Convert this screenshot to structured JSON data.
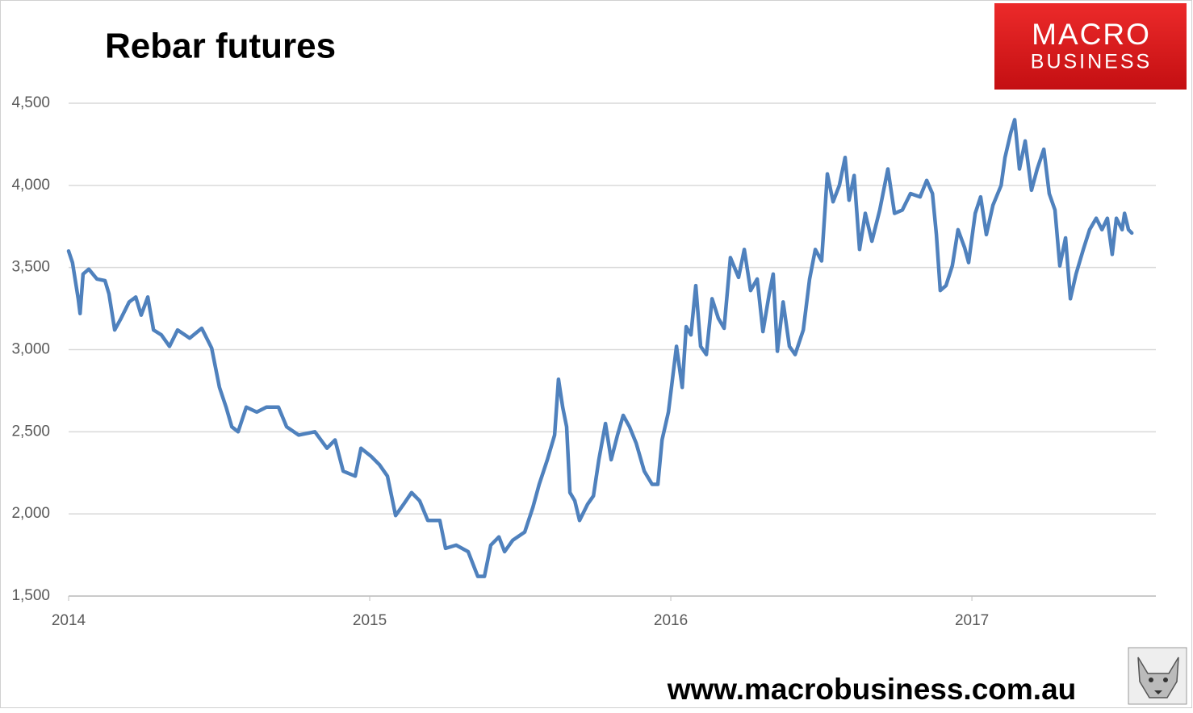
{
  "chart_data": {
    "type": "line",
    "title": "Rebar futures",
    "color": "#4f81bd",
    "grid": true,
    "xlim": [
      2014,
      2017.611
    ],
    "xticks": [
      2014,
      2015,
      2016,
      2017
    ],
    "ylim": [
      1500,
      4500
    ],
    "yticks": [
      {
        "value": 1500,
        "label": "1,500"
      },
      {
        "value": 2000,
        "label": "2,000"
      },
      {
        "value": 2500,
        "label": "2,500"
      },
      {
        "value": 3000,
        "label": "3,000"
      },
      {
        "value": 3500,
        "label": "3,500"
      },
      {
        "value": 4000,
        "label": "4,000"
      },
      {
        "value": 4500,
        "label": "4,500"
      }
    ],
    "x": [
      2014.0,
      2014.013,
      2014.032,
      2014.038,
      2014.048,
      2014.067,
      2014.094,
      2014.121,
      2014.134,
      2014.153,
      2014.174,
      2014.201,
      2014.223,
      2014.241,
      2014.263,
      2014.282,
      2014.308,
      2014.335,
      2014.362,
      2014.402,
      2014.442,
      2014.475,
      2014.501,
      2014.523,
      2014.542,
      2014.563,
      2014.59,
      2014.625,
      2014.657,
      2014.697,
      2014.724,
      2014.764,
      2014.818,
      2014.858,
      2014.885,
      2014.912,
      2014.952,
      2014.971,
      2015.005,
      2015.032,
      2015.059,
      2015.086,
      2015.113,
      2015.139,
      2015.166,
      2015.193,
      2015.233,
      2015.252,
      2015.287,
      2015.327,
      2015.359,
      2015.381,
      2015.402,
      2015.429,
      2015.448,
      2015.475,
      2015.515,
      2015.542,
      2015.563,
      2015.59,
      2015.614,
      2015.627,
      2015.641,
      2015.654,
      2015.665,
      2015.681,
      2015.697,
      2015.724,
      2015.743,
      2015.761,
      2015.783,
      2015.802,
      2015.823,
      2015.842,
      2015.863,
      2015.885,
      2015.912,
      2015.938,
      2015.957,
      2015.971,
      2015.992,
      2016.019,
      2016.038,
      2016.051,
      2016.067,
      2016.083,
      2016.099,
      2016.118,
      2016.137,
      2016.158,
      2016.177,
      2016.198,
      2016.225,
      2016.244,
      2016.265,
      2016.287,
      2016.306,
      2016.327,
      2016.34,
      2016.354,
      2016.373,
      2016.394,
      2016.413,
      2016.44,
      2016.461,
      2016.48,
      2016.501,
      2016.52,
      2016.539,
      2016.56,
      2016.579,
      2016.592,
      2016.609,
      2016.627,
      2016.646,
      2016.668,
      2016.694,
      2016.721,
      2016.743,
      2016.769,
      2016.796,
      2016.828,
      2016.85,
      2016.869,
      2016.882,
      2016.895,
      2016.914,
      2016.935,
      2016.954,
      2016.976,
      2016.989,
      2017.011,
      2017.029,
      2017.048,
      2017.07,
      2017.097,
      2017.11,
      2017.129,
      2017.142,
      2017.158,
      2017.177,
      2017.198,
      2017.217,
      2017.239,
      2017.257,
      2017.276,
      2017.292,
      2017.311,
      2017.327,
      2017.346,
      2017.37,
      2017.391,
      2017.413,
      2017.432,
      2017.45,
      2017.466,
      2017.48,
      2017.499,
      2017.507,
      2017.52,
      2017.531
    ],
    "values": [
      3600,
      3530,
      3310,
      3220,
      3460,
      3490,
      3430,
      3420,
      3340,
      3120,
      3190,
      3290,
      3320,
      3210,
      3320,
      3120,
      3090,
      3020,
      3120,
      3070,
      3130,
      3010,
      2770,
      2650,
      2530,
      2500,
      2650,
      2620,
      2650,
      2650,
      2530,
      2480,
      2500,
      2400,
      2450,
      2260,
      2230,
      2400,
      2350,
      2300,
      2230,
      1990,
      2060,
      2130,
      2080,
      1960,
      1960,
      1790,
      1810,
      1770,
      1620,
      1620,
      1810,
      1860,
      1770,
      1840,
      1890,
      2040,
      2180,
      2330,
      2480,
      2820,
      2650,
      2530,
      2130,
      2080,
      1960,
      2060,
      2110,
      2330,
      2550,
      2330,
      2480,
      2600,
      2530,
      2430,
      2260,
      2180,
      2180,
      2450,
      2620,
      3020,
      2770,
      3140,
      3090,
      3390,
      3020,
      2970,
      3310,
      3190,
      3130,
      3560,
      3440,
      3610,
      3360,
      3430,
      3110,
      3340,
      3460,
      2990,
      3290,
      3020,
      2970,
      3120,
      3430,
      3610,
      3540,
      4070,
      3900,
      4000,
      4170,
      3910,
      4060,
      3610,
      3830,
      3660,
      3850,
      4100,
      3830,
      3850,
      3950,
      3930,
      4030,
      3950,
      3700,
      3360,
      3390,
      3510,
      3730,
      3620,
      3530,
      3830,
      3930,
      3700,
      3880,
      4000,
      4170,
      4320,
      4400,
      4100,
      4270,
      3970,
      4100,
      4220,
      3950,
      3850,
      3510,
      3680,
      3310,
      3460,
      3610,
      3730,
      3800,
      3730,
      3800,
      3580,
      3800,
      3730,
      3830,
      3730,
      3710
    ]
  },
  "logo": {
    "line1": "MACRO",
    "line2": "BUSINESS"
  },
  "website": "www.macrobusiness.com.au"
}
